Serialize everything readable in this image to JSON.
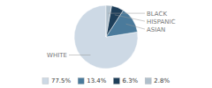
{
  "chart_data": {
    "type": "pie",
    "categories": [
      "WHITE",
      "ASIAN",
      "HISPANIC",
      "BLACK"
    ],
    "values": [
      77.5,
      13.4,
      6.3,
      2.8
    ],
    "value_labels": [
      "77.5%",
      "13.4%",
      "6.3%",
      "2.8%"
    ],
    "colors": [
      "#cdd9e5",
      "#4a7a9b",
      "#1e3f5a",
      "#b0c0cc"
    ]
  }
}
